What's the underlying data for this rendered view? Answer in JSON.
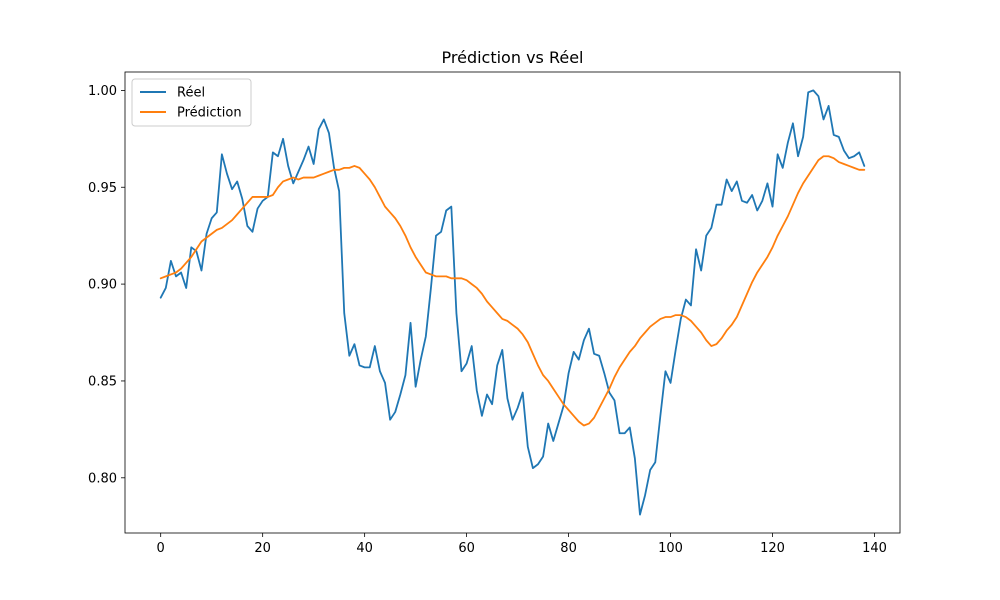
{
  "chart_data": {
    "type": "line",
    "title": "Prédiction vs Réel",
    "xlabel": "",
    "ylabel": "",
    "xlim": [
      -7,
      145
    ],
    "ylim": [
      0.7715,
      1.0095
    ],
    "grid": false,
    "legend_position": "upper-left",
    "x_ticks": [
      0,
      20,
      40,
      60,
      80,
      100,
      120,
      140
    ],
    "y_ticks": [
      0.8,
      0.85,
      0.9,
      0.95,
      1.0
    ],
    "x_tick_labels": [
      "0",
      "20",
      "40",
      "60",
      "80",
      "100",
      "120",
      "140"
    ],
    "y_tick_labels": [
      "0.80",
      "0.85",
      "0.90",
      "0.95",
      "1.00"
    ],
    "series": [
      {
        "name": "Réel",
        "color": "#1f77b4",
        "values": [
          0.893,
          0.898,
          0.912,
          0.904,
          0.906,
          0.898,
          0.919,
          0.917,
          0.907,
          0.926,
          0.934,
          0.937,
          0.967,
          0.957,
          0.949,
          0.953,
          0.944,
          0.93,
          0.927,
          0.939,
          0.943,
          0.945,
          0.968,
          0.966,
          0.975,
          0.961,
          0.952,
          0.958,
          0.964,
          0.971,
          0.962,
          0.98,
          0.985,
          0.978,
          0.96,
          0.948,
          0.885,
          0.863,
          0.869,
          0.858,
          0.857,
          0.857,
          0.868,
          0.855,
          0.849,
          0.83,
          0.834,
          0.843,
          0.853,
          0.88,
          0.847,
          0.861,
          0.873,
          0.898,
          0.925,
          0.927,
          0.938,
          0.94,
          0.885,
          0.855,
          0.859,
          0.868,
          0.845,
          0.832,
          0.843,
          0.838,
          0.858,
          0.866,
          0.841,
          0.83,
          0.836,
          0.844,
          0.816,
          0.805,
          0.807,
          0.811,
          0.828,
          0.819,
          0.828,
          0.837,
          0.854,
          0.865,
          0.861,
          0.871,
          0.877,
          0.864,
          0.863,
          0.854,
          0.844,
          0.84,
          0.823,
          0.823,
          0.826,
          0.81,
          0.781,
          0.791,
          0.804,
          0.808,
          0.832,
          0.855,
          0.849,
          0.866,
          0.882,
          0.892,
          0.889,
          0.918,
          0.907,
          0.925,
          0.929,
          0.941,
          0.941,
          0.954,
          0.948,
          0.953,
          0.943,
          0.942,
          0.946,
          0.938,
          0.943,
          0.952,
          0.94,
          0.967,
          0.96,
          0.973,
          0.983,
          0.966,
          0.976,
          0.999,
          1.0,
          0.997,
          0.985,
          0.992,
          0.977,
          0.976,
          0.969,
          0.965,
          0.966,
          0.968,
          0.961
        ]
      },
      {
        "name": "Prédiction",
        "color": "#ff7f0e",
        "values": [
          0.903,
          0.904,
          0.905,
          0.906,
          0.908,
          0.911,
          0.914,
          0.918,
          0.922,
          0.924,
          0.926,
          0.928,
          0.929,
          0.931,
          0.933,
          0.936,
          0.939,
          0.942,
          0.945,
          0.945,
          0.945,
          0.945,
          0.946,
          0.95,
          0.953,
          0.954,
          0.955,
          0.954,
          0.955,
          0.955,
          0.955,
          0.956,
          0.957,
          0.958,
          0.959,
          0.959,
          0.96,
          0.96,
          0.961,
          0.96,
          0.957,
          0.954,
          0.95,
          0.945,
          0.94,
          0.937,
          0.934,
          0.93,
          0.925,
          0.919,
          0.914,
          0.91,
          0.906,
          0.905,
          0.904,
          0.904,
          0.904,
          0.903,
          0.903,
          0.903,
          0.902,
          0.9,
          0.898,
          0.895,
          0.891,
          0.888,
          0.885,
          0.882,
          0.881,
          0.879,
          0.877,
          0.874,
          0.87,
          0.864,
          0.858,
          0.853,
          0.85,
          0.846,
          0.842,
          0.838,
          0.835,
          0.832,
          0.829,
          0.827,
          0.828,
          0.831,
          0.836,
          0.841,
          0.846,
          0.852,
          0.857,
          0.861,
          0.865,
          0.868,
          0.872,
          0.875,
          0.878,
          0.88,
          0.882,
          0.883,
          0.883,
          0.884,
          0.884,
          0.883,
          0.881,
          0.878,
          0.875,
          0.871,
          0.868,
          0.869,
          0.872,
          0.876,
          0.879,
          0.883,
          0.889,
          0.895,
          0.901,
          0.906,
          0.91,
          0.914,
          0.919,
          0.925,
          0.93,
          0.935,
          0.941,
          0.947,
          0.952,
          0.956,
          0.96,
          0.964,
          0.966,
          0.966,
          0.965,
          0.963,
          0.962,
          0.961,
          0.96,
          0.959,
          0.959
        ]
      }
    ]
  }
}
